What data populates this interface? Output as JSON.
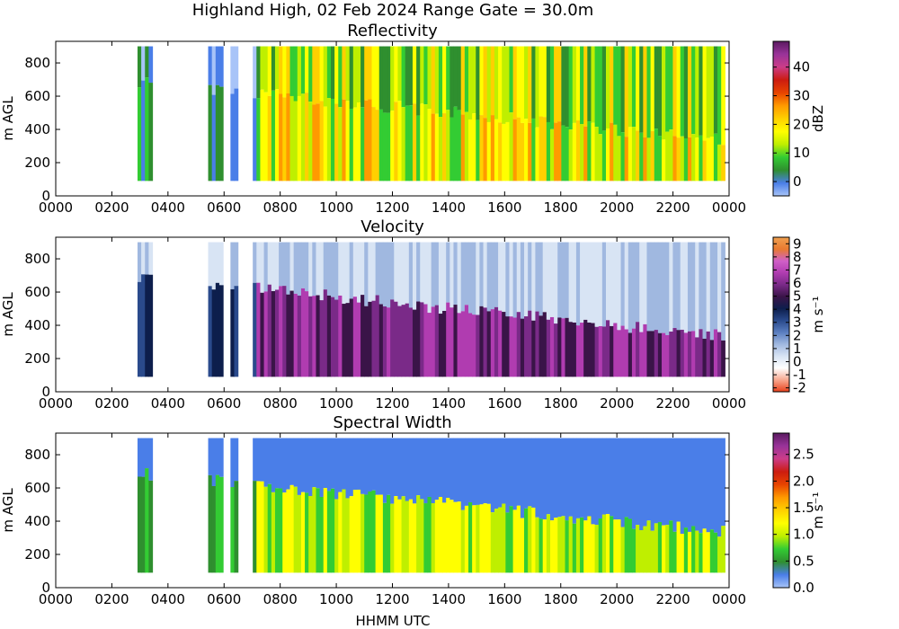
{
  "figure": {
    "suptitle": "Highland High, 02 Feb 2024 Range Gate = 30.0m",
    "xlabel": "HHMM UTC"
  },
  "chart_data": [
    {
      "type": "heatmap",
      "title": "Reflectivity",
      "ylabel": "m AGL",
      "xticks": [
        "0000",
        "0200",
        "0400",
        "0600",
        "0800",
        "1000",
        "1200",
        "1400",
        "1600",
        "1800",
        "2000",
        "2200",
        "0000"
      ],
      "yticks": [
        "0",
        "200",
        "400",
        "600",
        "800"
      ],
      "xlim_hours": [
        0,
        24
      ],
      "ylim": [
        0,
        930
      ],
      "data_height_range": [
        90,
        900
      ],
      "colorbar": {
        "label": "dBZ",
        "ticks": [
          "0",
          "10",
          "20",
          "30",
          "40"
        ],
        "range": [
          -5,
          49
        ]
      },
      "colorscale": [
        "#a8c4f8",
        "#4a7ee8",
        "#2f8f2f",
        "#33cc33",
        "#bfef00",
        "#ffff00",
        "#ffd000",
        "#ff9a00",
        "#e84400",
        "#cc1c10",
        "#cc3c88",
        "#993399",
        "#5a1a60"
      ]
    },
    {
      "type": "heatmap",
      "title": "Velocity",
      "ylabel": "m s⁻¹",
      "axis_ylabel": "m AGL",
      "xticks": [
        "0000",
        "0200",
        "0400",
        "0600",
        "0800",
        "1000",
        "1200",
        "1400",
        "1600",
        "1800",
        "2000",
        "2200",
        "0000"
      ],
      "yticks": [
        "0",
        "200",
        "400",
        "600",
        "800"
      ],
      "xlim_hours": [
        0,
        24
      ],
      "ylim": [
        0,
        930
      ],
      "colorbar": {
        "label": "m s⁻¹",
        "ticks": [
          "-2",
          "-1",
          "0",
          "1",
          "2",
          "3",
          "4",
          "5",
          "6",
          "7",
          "8",
          "9"
        ],
        "range": [
          -2.3,
          9.5
        ]
      },
      "colorscale": [
        "#e8401c",
        "#f8a890",
        "#ffffff",
        "#d8e4f4",
        "#a0b8e0",
        "#5a7ec0",
        "#2a4a8c",
        "#0d1e4c",
        "#3a1448",
        "#7a2a88",
        "#b03cb0",
        "#d060c8",
        "#e87a30",
        "#f0a050"
      ]
    },
    {
      "type": "heatmap",
      "title": "Spectral Width",
      "axis_ylabel": "m AGL",
      "xticks": [
        "0000",
        "0200",
        "0400",
        "0600",
        "0800",
        "1000",
        "1200",
        "1400",
        "1600",
        "1800",
        "2000",
        "2200",
        "0000"
      ],
      "yticks": [
        "0",
        "200",
        "400",
        "600",
        "800"
      ],
      "xlim_hours": [
        0,
        24
      ],
      "ylim": [
        0,
        930
      ],
      "colorbar": {
        "label": "m s⁻¹",
        "ticks": [
          "0.0",
          "0.5",
          "1.0",
          "1.5",
          "2.0",
          "2.5"
        ],
        "range": [
          0,
          2.9
        ]
      },
      "colorscale": [
        "#a8c4f8",
        "#4a7ee8",
        "#2f8f2f",
        "#33cc33",
        "#bfef00",
        "#ffff00",
        "#ffd000",
        "#ff9a00",
        "#e84400",
        "#cc1c10",
        "#cc3c88",
        "#993399",
        "#5a1a60"
      ]
    }
  ],
  "data_gaps_hours": [
    [
      0,
      2.95
    ],
    [
      3.45,
      5.4
    ],
    [
      5.9,
      6.25
    ],
    [
      6.45,
      7.0
    ]
  ]
}
